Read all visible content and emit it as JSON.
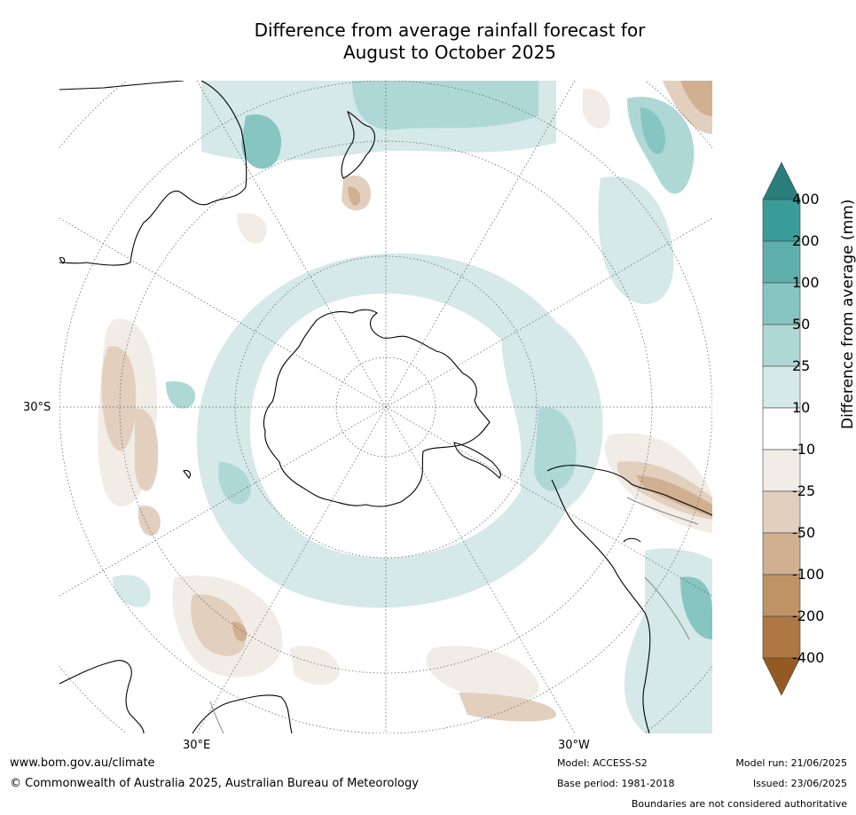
{
  "title": {
    "line1": "Difference from average rainfall forecast for",
    "line2": "August to October 2025"
  },
  "map": {
    "projection": "south-polar stereographic",
    "lat_label": "30°S",
    "lon_labels": [
      "30°E",
      "30°W"
    ]
  },
  "colorbar": {
    "title": "Difference from average (mm)",
    "levels": [
      "400",
      "200",
      "100",
      "50",
      "25",
      "10",
      "-10",
      "-25",
      "-50",
      "-100",
      "-200",
      "-400"
    ],
    "colors": [
      "#2a7e7c",
      "#3a9c98",
      "#5fb0ad",
      "#87c5c2",
      "#aed8d6",
      "#d4e9e8",
      "#ffffff",
      "#f1ece6",
      "#e2cfbe",
      "#d0b090",
      "#bf9366",
      "#ad7743",
      "#955a24"
    ]
  },
  "footer": {
    "website": "www.bom.gov.au/climate",
    "copyright": "© Commonwealth of Australia 2025, Australian Bureau of Meteorology",
    "model": "Model: ACCESS-S2",
    "base_period": "Base period: 1981-2018",
    "model_run": "Model run: 21/06/2025",
    "issued": "Issued: 23/06/2025",
    "boundaries_note": "Boundaries are not considered authoritative"
  }
}
